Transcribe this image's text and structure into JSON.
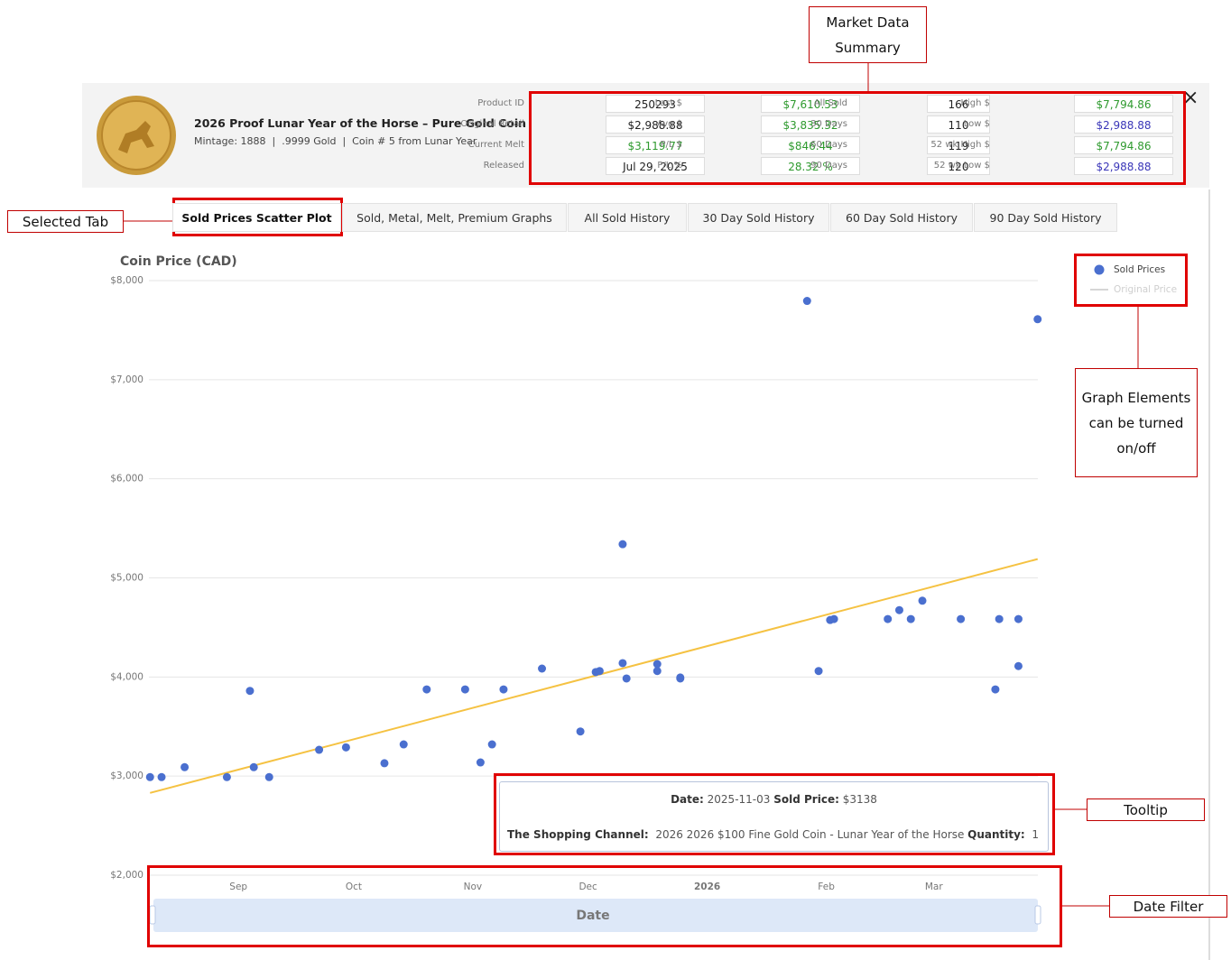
{
  "header": {
    "title": "2026 Proof Lunar Year of the Horse – Pure Gold Coin",
    "subtitle": "Mintage: 1888  |  .9999 Gold  |  Coin # 5 from Lunar Year",
    "close": "×"
  },
  "summary": {
    "rows": [
      [
        "Product ID",
        "250293",
        "Last $",
        "$7,610.53",
        "All Sold",
        "166",
        "High $",
        "$7,794.86"
      ],
      [
        "Original Retail",
        "$2,988.88",
        "Avg $",
        "$3,835.32",
        "30 Days",
        "110",
        "Low $",
        "$2,988.88"
      ],
      [
        "Current Melt",
        "$3,119.77",
        "P/L $",
        "$846.44",
        "60 Days",
        "119",
        "52 wk High $",
        "$7,794.86"
      ],
      [
        "Released",
        "Jul 29, 2025",
        "P/L %",
        "28.32 %",
        "90 Days",
        "120",
        "52 wk Low $",
        "$2,988.88"
      ]
    ]
  },
  "tabs": {
    "items": [
      "Sold Prices Scatter Plot",
      "Sold, Metal, Melt, Premium Graphs",
      "All Sold History",
      "30 Day Sold History",
      "60 Day Sold History",
      "90 Day Sold History"
    ],
    "selected": 0
  },
  "annotations": [
    "Market Data Summary",
    "Selected Tab",
    "Graph Elements can be turned on/off",
    "Tooltip",
    "Date Filter"
  ],
  "tooltip": {
    "date_label": "Date:",
    "date": "2025-11-03",
    "price_label": "Sold Price:",
    "price": "$3138",
    "channel_label": "The Shopping Channel:",
    "item": "2026 2026 $100 Fine Gold Coin - Lunar Year of the Horse",
    "quantity_label": "Quantity:",
    "quantity": 1
  },
  "date_filter": {
    "label": "Date"
  },
  "chart_data": {
    "type": "scatter",
    "y_label": "Coin Price (CAD)",
    "xlim": [
      "2025-08-08",
      "2026-03-29"
    ],
    "xticks": [
      {
        "value": "2025-09-01",
        "label": "Sep"
      },
      {
        "value": "2025-10-01",
        "label": "Oct"
      },
      {
        "value": "2025-11-01",
        "label": "Nov"
      },
      {
        "value": "2025-12-01",
        "label": "Dec"
      },
      {
        "value": "2026-01-01",
        "label": "2026"
      },
      {
        "value": "2026-02-01",
        "label": "Feb"
      },
      {
        "value": "2026-03-01",
        "label": "Mar"
      }
    ],
    "ylim": [
      2000,
      8000
    ],
    "yticks": [
      {
        "value": 2000,
        "label": "$2,000"
      },
      {
        "value": 3000,
        "label": "$3,000"
      },
      {
        "value": 4000,
        "label": "$4,000"
      },
      {
        "value": 5000,
        "label": "$5,000"
      },
      {
        "value": 6000,
        "label": "$6,000"
      },
      {
        "value": 7000,
        "label": "$7,000"
      },
      {
        "value": 8000,
        "label": "$8,000"
      }
    ],
    "grid": true,
    "series": [
      {
        "name": "Sold Prices",
        "color": "#4a6fcf",
        "x": [
          "2025-08-09",
          "2025-08-12",
          "2025-08-18",
          "2025-08-29",
          "2025-09-04",
          "2025-09-05",
          "2025-09-09",
          "2025-09-22",
          "2025-09-29",
          "2025-10-09",
          "2025-10-14",
          "2025-10-20",
          "2025-10-30",
          "2025-11-03",
          "2025-11-06",
          "2025-11-09",
          "2025-11-19",
          "2025-11-29",
          "2025-12-03",
          "2025-12-04",
          "2025-12-10",
          "2025-12-10",
          "2025-12-11",
          "2025-12-19",
          "2025-12-19",
          "2025-12-25",
          "2025-12-25",
          "2026-01-27",
          "2026-01-30",
          "2026-02-02",
          "2026-02-03",
          "2026-02-17",
          "2026-02-20",
          "2026-02-23",
          "2026-02-26",
          "2026-03-08",
          "2026-03-17",
          "2026-03-18",
          "2026-03-23",
          "2026-03-23",
          "2026-03-28"
        ],
        "values": [
          2990,
          2990,
          3090,
          2990,
          3860,
          3090,
          2990,
          3265,
          3290,
          3130,
          3320,
          3875,
          3875,
          3138,
          3320,
          3875,
          4085,
          3450,
          4050,
          4060,
          5340,
          4140,
          3985,
          4130,
          4060,
          3995,
          3985,
          7794.86,
          4060,
          4575,
          4585,
          4585,
          4675,
          4585,
          4770,
          4585,
          3875,
          4585,
          4585,
          4110,
          7610.53
        ]
      },
      {
        "name": "Original Price",
        "color": "#d6d6d6",
        "visible": false
      }
    ],
    "trend": {
      "color": "#f5c242",
      "x": [
        "2025-08-09",
        "2026-03-28"
      ],
      "values": [
        2830,
        5190
      ]
    }
  }
}
